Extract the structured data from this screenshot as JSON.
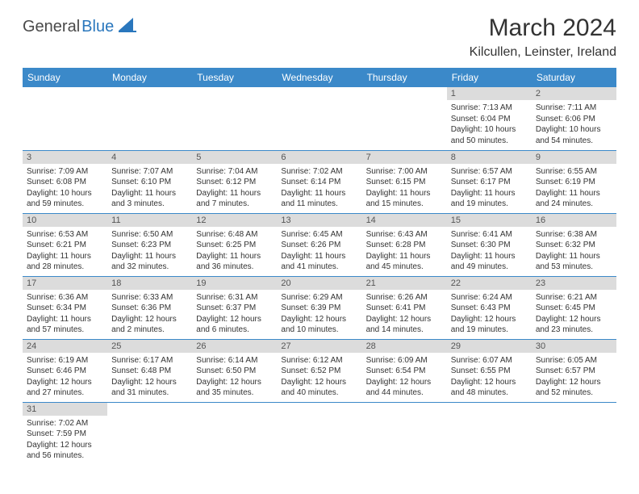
{
  "logo": {
    "text_dark": "General",
    "text_blue": "Blue"
  },
  "title": "March 2024",
  "location": "Kilcullen, Leinster, Ireland",
  "colors": {
    "header_bg": "#3b89c9",
    "header_text": "#ffffff",
    "daynum_bg": "#dcdcdc",
    "row_border": "#3b89c9",
    "logo_blue": "#2a77bd"
  },
  "weekdays": [
    "Sunday",
    "Monday",
    "Tuesday",
    "Wednesday",
    "Thursday",
    "Friday",
    "Saturday"
  ],
  "weeks": [
    [
      null,
      null,
      null,
      null,
      null,
      {
        "n": "1",
        "sr": "Sunrise: 7:13 AM",
        "ss": "Sunset: 6:04 PM",
        "dl": "Daylight: 10 hours and 50 minutes."
      },
      {
        "n": "2",
        "sr": "Sunrise: 7:11 AM",
        "ss": "Sunset: 6:06 PM",
        "dl": "Daylight: 10 hours and 54 minutes."
      }
    ],
    [
      {
        "n": "3",
        "sr": "Sunrise: 7:09 AM",
        "ss": "Sunset: 6:08 PM",
        "dl": "Daylight: 10 hours and 59 minutes."
      },
      {
        "n": "4",
        "sr": "Sunrise: 7:07 AM",
        "ss": "Sunset: 6:10 PM",
        "dl": "Daylight: 11 hours and 3 minutes."
      },
      {
        "n": "5",
        "sr": "Sunrise: 7:04 AM",
        "ss": "Sunset: 6:12 PM",
        "dl": "Daylight: 11 hours and 7 minutes."
      },
      {
        "n": "6",
        "sr": "Sunrise: 7:02 AM",
        "ss": "Sunset: 6:14 PM",
        "dl": "Daylight: 11 hours and 11 minutes."
      },
      {
        "n": "7",
        "sr": "Sunrise: 7:00 AM",
        "ss": "Sunset: 6:15 PM",
        "dl": "Daylight: 11 hours and 15 minutes."
      },
      {
        "n": "8",
        "sr": "Sunrise: 6:57 AM",
        "ss": "Sunset: 6:17 PM",
        "dl": "Daylight: 11 hours and 19 minutes."
      },
      {
        "n": "9",
        "sr": "Sunrise: 6:55 AM",
        "ss": "Sunset: 6:19 PM",
        "dl": "Daylight: 11 hours and 24 minutes."
      }
    ],
    [
      {
        "n": "10",
        "sr": "Sunrise: 6:53 AM",
        "ss": "Sunset: 6:21 PM",
        "dl": "Daylight: 11 hours and 28 minutes."
      },
      {
        "n": "11",
        "sr": "Sunrise: 6:50 AM",
        "ss": "Sunset: 6:23 PM",
        "dl": "Daylight: 11 hours and 32 minutes."
      },
      {
        "n": "12",
        "sr": "Sunrise: 6:48 AM",
        "ss": "Sunset: 6:25 PM",
        "dl": "Daylight: 11 hours and 36 minutes."
      },
      {
        "n": "13",
        "sr": "Sunrise: 6:45 AM",
        "ss": "Sunset: 6:26 PM",
        "dl": "Daylight: 11 hours and 41 minutes."
      },
      {
        "n": "14",
        "sr": "Sunrise: 6:43 AM",
        "ss": "Sunset: 6:28 PM",
        "dl": "Daylight: 11 hours and 45 minutes."
      },
      {
        "n": "15",
        "sr": "Sunrise: 6:41 AM",
        "ss": "Sunset: 6:30 PM",
        "dl": "Daylight: 11 hours and 49 minutes."
      },
      {
        "n": "16",
        "sr": "Sunrise: 6:38 AM",
        "ss": "Sunset: 6:32 PM",
        "dl": "Daylight: 11 hours and 53 minutes."
      }
    ],
    [
      {
        "n": "17",
        "sr": "Sunrise: 6:36 AM",
        "ss": "Sunset: 6:34 PM",
        "dl": "Daylight: 11 hours and 57 minutes."
      },
      {
        "n": "18",
        "sr": "Sunrise: 6:33 AM",
        "ss": "Sunset: 6:36 PM",
        "dl": "Daylight: 12 hours and 2 minutes."
      },
      {
        "n": "19",
        "sr": "Sunrise: 6:31 AM",
        "ss": "Sunset: 6:37 PM",
        "dl": "Daylight: 12 hours and 6 minutes."
      },
      {
        "n": "20",
        "sr": "Sunrise: 6:29 AM",
        "ss": "Sunset: 6:39 PM",
        "dl": "Daylight: 12 hours and 10 minutes."
      },
      {
        "n": "21",
        "sr": "Sunrise: 6:26 AM",
        "ss": "Sunset: 6:41 PM",
        "dl": "Daylight: 12 hours and 14 minutes."
      },
      {
        "n": "22",
        "sr": "Sunrise: 6:24 AM",
        "ss": "Sunset: 6:43 PM",
        "dl": "Daylight: 12 hours and 19 minutes."
      },
      {
        "n": "23",
        "sr": "Sunrise: 6:21 AM",
        "ss": "Sunset: 6:45 PM",
        "dl": "Daylight: 12 hours and 23 minutes."
      }
    ],
    [
      {
        "n": "24",
        "sr": "Sunrise: 6:19 AM",
        "ss": "Sunset: 6:46 PM",
        "dl": "Daylight: 12 hours and 27 minutes."
      },
      {
        "n": "25",
        "sr": "Sunrise: 6:17 AM",
        "ss": "Sunset: 6:48 PM",
        "dl": "Daylight: 12 hours and 31 minutes."
      },
      {
        "n": "26",
        "sr": "Sunrise: 6:14 AM",
        "ss": "Sunset: 6:50 PM",
        "dl": "Daylight: 12 hours and 35 minutes."
      },
      {
        "n": "27",
        "sr": "Sunrise: 6:12 AM",
        "ss": "Sunset: 6:52 PM",
        "dl": "Daylight: 12 hours and 40 minutes."
      },
      {
        "n": "28",
        "sr": "Sunrise: 6:09 AM",
        "ss": "Sunset: 6:54 PM",
        "dl": "Daylight: 12 hours and 44 minutes."
      },
      {
        "n": "29",
        "sr": "Sunrise: 6:07 AM",
        "ss": "Sunset: 6:55 PM",
        "dl": "Daylight: 12 hours and 48 minutes."
      },
      {
        "n": "30",
        "sr": "Sunrise: 6:05 AM",
        "ss": "Sunset: 6:57 PM",
        "dl": "Daylight: 12 hours and 52 minutes."
      }
    ],
    [
      {
        "n": "31",
        "sr": "Sunrise: 7:02 AM",
        "ss": "Sunset: 7:59 PM",
        "dl": "Daylight: 12 hours and 56 minutes."
      },
      null,
      null,
      null,
      null,
      null,
      null
    ]
  ]
}
